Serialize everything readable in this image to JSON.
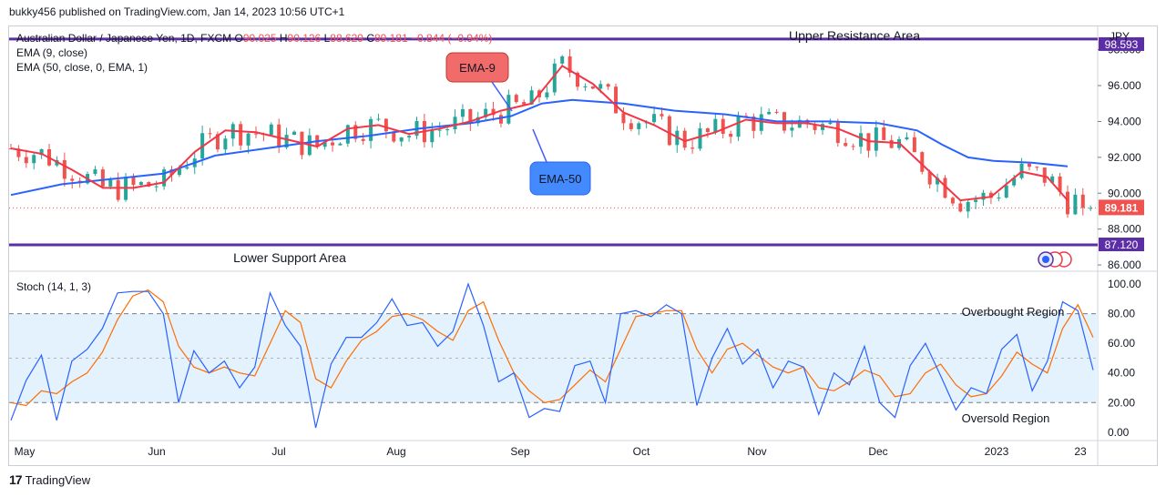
{
  "header": {
    "publish_line": "bukky456 published on TradingView.com, Jan 14, 2023 10:56 UTC+1"
  },
  "legend": {
    "symbol": "Australian Dollar / Japanese Yen, 1D, FXCM",
    "open_label": "O",
    "open": "90.025",
    "high_label": "H",
    "high": "90.126",
    "low_label": "L",
    "low": "88.629",
    "close_label": "C",
    "close": "89.181",
    "change": "−0.844 (−0.94%)",
    "ema9_label": "EMA (9, close)",
    "ema50_label": "EMA (50, close, 0, EMA, 1)"
  },
  "stoch_legend": "Stoch (14, 1, 3)",
  "footer": {
    "brand": "TradingView",
    "logo_mark": "17"
  },
  "colors": {
    "up": "#26a69a",
    "down": "#ef5350",
    "ema9": "#f23645",
    "ema50": "#2962ff",
    "levels": "#5b2ea6",
    "stoch_k": "#2962ff",
    "stoch_d": "#ff6d00",
    "band": "#e3f2fd"
  },
  "chart_data": [
    {
      "type": "candlestick",
      "title": "Australian Dollar / Japanese Yen, 1D, FXCM",
      "currency": "JPY",
      "x_ticks": [
        "May",
        "Jun",
        "Jul",
        "Aug",
        "Sep",
        "Oct",
        "Nov",
        "Dec",
        "2023",
        "23"
      ],
      "y_ticks": [
        "86.000",
        "88.000",
        "90.000",
        "92.000",
        "94.000",
        "96.000",
        "98.000"
      ],
      "ylim": [
        85.7,
        99.3
      ],
      "last_price": 89.181,
      "last_price_label": "89.181",
      "levels": [
        {
          "name": "Upper Resistance Area",
          "value": 98.593,
          "label": "98.593"
        },
        {
          "name": "Lower Support Area",
          "value": 87.12,
          "label": "87.120"
        }
      ],
      "annotations": [
        {
          "text": "EMA-9",
          "target": "ema9"
        },
        {
          "text": "EMA-50",
          "target": "ema50"
        }
      ],
      "ema9_anchor": [
        [
          0,
          92.5
        ],
        [
          12,
          92.2
        ],
        [
          24,
          91.3
        ],
        [
          36,
          90.3
        ],
        [
          48,
          90.3
        ],
        [
          60,
          90.6
        ],
        [
          72,
          92.3
        ],
        [
          84,
          93.5
        ],
        [
          96,
          93.4
        ],
        [
          108,
          93.0
        ],
        [
          120,
          92.6
        ],
        [
          132,
          93.6
        ],
        [
          144,
          93.8
        ],
        [
          156,
          93.3
        ],
        [
          168,
          93.6
        ],
        [
          180,
          94.0
        ],
        [
          192,
          94.6
        ],
        [
          204,
          95.0
        ],
        [
          216,
          97.1
        ],
        [
          228,
          96.1
        ],
        [
          240,
          94.5
        ],
        [
          252,
          93.8
        ],
        [
          264,
          92.9
        ],
        [
          276,
          93.4
        ],
        [
          288,
          94.1
        ],
        [
          300,
          93.9
        ],
        [
          312,
          93.9
        ],
        [
          324,
          93.6
        ],
        [
          336,
          92.9
        ],
        [
          348,
          92.8
        ],
        [
          360,
          91.2
        ],
        [
          372,
          89.6
        ],
        [
          384,
          89.8
        ],
        [
          396,
          91.2
        ],
        [
          406,
          90.9
        ],
        [
          414,
          89.6
        ]
      ],
      "ema50_anchor": [
        [
          0,
          89.9
        ],
        [
          20,
          90.5
        ],
        [
          40,
          90.8
        ],
        [
          60,
          91.1
        ],
        [
          80,
          92.1
        ],
        [
          100,
          92.5
        ],
        [
          120,
          92.9
        ],
        [
          140,
          93.2
        ],
        [
          160,
          93.6
        ],
        [
          180,
          93.9
        ],
        [
          196,
          94.3
        ],
        [
          208,
          95.0
        ],
        [
          220,
          95.2
        ],
        [
          240,
          95.0
        ],
        [
          260,
          94.6
        ],
        [
          280,
          94.4
        ],
        [
          300,
          94.0
        ],
        [
          320,
          94.0
        ],
        [
          340,
          93.9
        ],
        [
          355,
          93.5
        ],
        [
          365,
          92.7
        ],
        [
          375,
          92.0
        ],
        [
          385,
          91.8
        ],
        [
          400,
          91.7
        ],
        [
          414,
          91.5
        ]
      ],
      "stoch_k_anchor": [
        [
          0,
          8
        ],
        [
          6,
          35
        ],
        [
          12,
          52
        ],
        [
          18,
          8
        ],
        [
          24,
          48
        ],
        [
          30,
          56
        ],
        [
          36,
          70
        ],
        [
          42,
          94
        ],
        [
          48,
          95
        ],
        [
          54,
          95
        ],
        [
          60,
          80
        ],
        [
          66,
          20
        ],
        [
          72,
          55
        ],
        [
          78,
          40
        ],
        [
          84,
          48
        ],
        [
          90,
          30
        ],
        [
          96,
          44
        ],
        [
          102,
          94
        ],
        [
          108,
          72
        ],
        [
          114,
          58
        ],
        [
          120,
          3
        ],
        [
          126,
          46
        ],
        [
          132,
          64
        ],
        [
          138,
          64
        ],
        [
          144,
          74
        ],
        [
          150,
          90
        ],
        [
          156,
          72
        ],
        [
          162,
          74
        ],
        [
          168,
          58
        ],
        [
          174,
          68
        ],
        [
          180,
          100
        ],
        [
          186,
          72
        ],
        [
          192,
          34
        ],
        [
          198,
          40
        ],
        [
          204,
          10
        ],
        [
          210,
          16
        ],
        [
          216,
          14
        ],
        [
          222,
          45
        ],
        [
          228,
          48
        ],
        [
          234,
          20
        ],
        [
          240,
          80
        ],
        [
          246,
          82
        ],
        [
          252,
          78
        ],
        [
          258,
          86
        ],
        [
          264,
          80
        ],
        [
          270,
          18
        ],
        [
          276,
          50
        ],
        [
          282,
          70
        ],
        [
          288,
          46
        ],
        [
          294,
          56
        ],
        [
          300,
          30
        ],
        [
          306,
          48
        ],
        [
          312,
          44
        ],
        [
          318,
          12
        ],
        [
          324,
          40
        ],
        [
          330,
          32
        ],
        [
          336,
          58
        ],
        [
          342,
          20
        ],
        [
          348,
          10
        ],
        [
          354,
          45
        ],
        [
          360,
          60
        ],
        [
          366,
          38
        ],
        [
          372,
          15
        ],
        [
          378,
          30
        ],
        [
          384,
          26
        ],
        [
          390,
          56
        ],
        [
          396,
          66
        ],
        [
          402,
          28
        ],
        [
          408,
          48
        ],
        [
          414,
          88
        ],
        [
          420,
          82
        ],
        [
          426,
          42
        ]
      ],
      "stoch_d_anchor": [
        [
          0,
          20
        ],
        [
          6,
          18
        ],
        [
          12,
          28
        ],
        [
          18,
          26
        ],
        [
          24,
          34
        ],
        [
          30,
          40
        ],
        [
          36,
          54
        ],
        [
          42,
          76
        ],
        [
          48,
          92
        ],
        [
          54,
          96
        ],
        [
          60,
          88
        ],
        [
          66,
          58
        ],
        [
          72,
          44
        ],
        [
          78,
          40
        ],
        [
          84,
          44
        ],
        [
          90,
          40
        ],
        [
          96,
          38
        ],
        [
          102,
          60
        ],
        [
          108,
          82
        ],
        [
          114,
          74
        ],
        [
          120,
          36
        ],
        [
          126,
          30
        ],
        [
          132,
          48
        ],
        [
          138,
          62
        ],
        [
          144,
          68
        ],
        [
          150,
          78
        ],
        [
          156,
          80
        ],
        [
          162,
          76
        ],
        [
          168,
          68
        ],
        [
          174,
          62
        ],
        [
          180,
          82
        ],
        [
          186,
          88
        ],
        [
          192,
          62
        ],
        [
          198,
          40
        ],
        [
          204,
          28
        ],
        [
          210,
          20
        ],
        [
          216,
          22
        ],
        [
          222,
          32
        ],
        [
          228,
          42
        ],
        [
          234,
          34
        ],
        [
          240,
          56
        ],
        [
          246,
          78
        ],
        [
          252,
          80
        ],
        [
          258,
          82
        ],
        [
          264,
          82
        ],
        [
          270,
          56
        ],
        [
          276,
          40
        ],
        [
          282,
          56
        ],
        [
          288,
          60
        ],
        [
          294,
          52
        ],
        [
          300,
          44
        ],
        [
          306,
          40
        ],
        [
          312,
          44
        ],
        [
          318,
          30
        ],
        [
          324,
          28
        ],
        [
          330,
          34
        ],
        [
          336,
          42
        ],
        [
          342,
          38
        ],
        [
          348,
          24
        ],
        [
          354,
          26
        ],
        [
          360,
          40
        ],
        [
          366,
          46
        ],
        [
          372,
          32
        ],
        [
          378,
          24
        ],
        [
          384,
          26
        ],
        [
          390,
          38
        ],
        [
          396,
          54
        ],
        [
          402,
          46
        ],
        [
          408,
          40
        ],
        [
          414,
          70
        ],
        [
          420,
          86
        ],
        [
          426,
          64
        ]
      ]
    },
    {
      "type": "line",
      "title": "Stoch (14, 1, 3)",
      "y_ticks": [
        "0.00",
        "20.00",
        "40.00",
        "60.00",
        "80.00",
        "100.00"
      ],
      "ylim": [
        -5,
        108
      ],
      "reference_lines": [
        80,
        50,
        20
      ],
      "band": [
        20,
        80
      ],
      "annotations": [
        {
          "text": "Overbought Region"
        },
        {
          "text": "Oversold Region"
        }
      ]
    }
  ]
}
